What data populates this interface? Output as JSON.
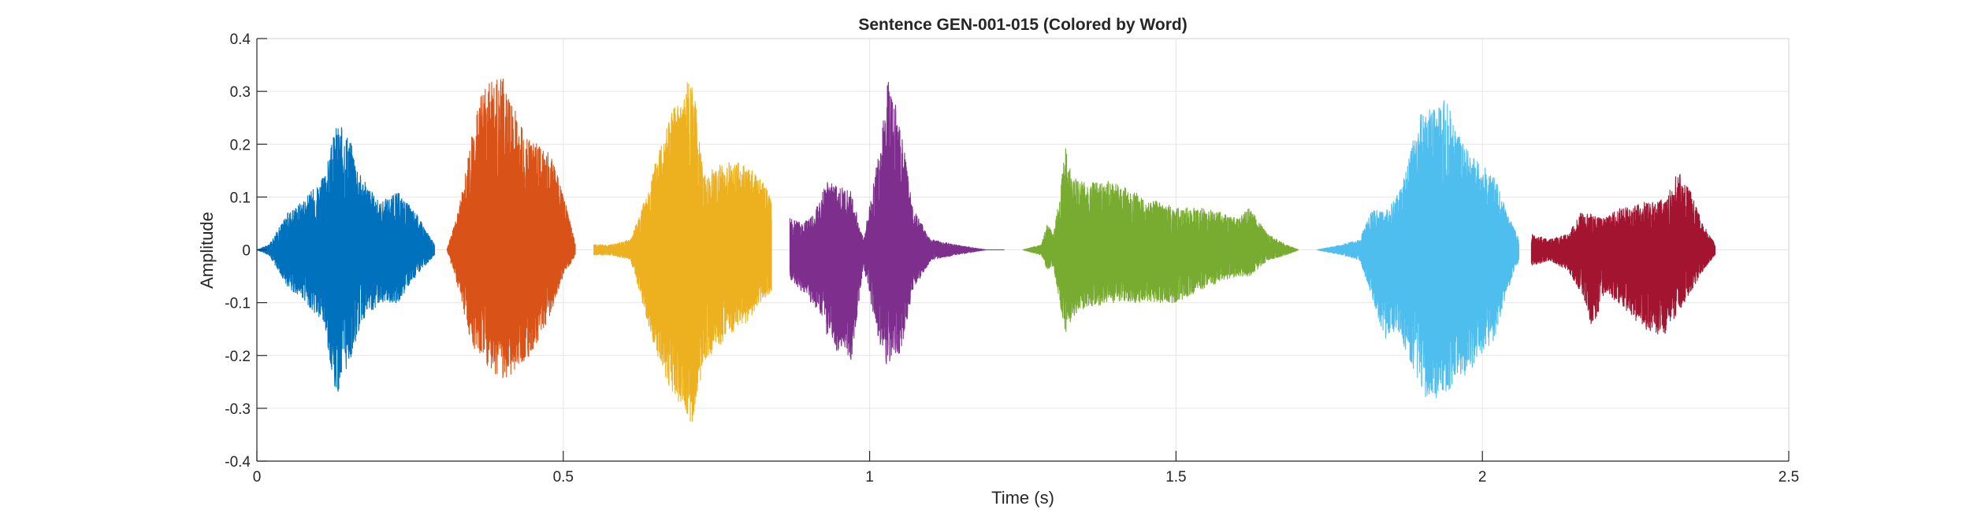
{
  "chart_data": {
    "type": "line",
    "title": "Sentence GEN-001-015 (Colored by Word)",
    "xlabel": "Time (s)",
    "ylabel": "Amplitude",
    "xlim": [
      0,
      2.5
    ],
    "ylim": [
      -0.4,
      0.4
    ],
    "xticks": [
      0,
      0.5,
      1,
      1.5,
      2,
      2.5
    ],
    "xtick_labels": [
      "0",
      "0.5",
      "1",
      "1.5",
      "2",
      "2.5"
    ],
    "yticks": [
      -0.4,
      -0.3,
      -0.2,
      -0.1,
      0,
      0.1,
      0.2,
      0.3,
      0.4
    ],
    "ytick_labels": [
      "-0.4",
      "-0.3",
      "-0.2",
      "-0.1",
      "0",
      "0.1",
      "0.2",
      "0.3",
      "0.4"
    ],
    "grid": true,
    "series": [
      {
        "color": "#0072BD",
        "x": [
          0.0,
          0.02,
          0.05,
          0.08,
          0.11,
          0.13,
          0.15,
          0.17,
          0.2,
          0.23,
          0.26,
          0.29
        ],
        "upper": [
          0.0,
          0.01,
          0.07,
          0.1,
          0.14,
          0.24,
          0.22,
          0.14,
          0.09,
          0.11,
          0.07,
          0.01
        ],
        "lower": [
          0.0,
          -0.01,
          -0.07,
          -0.1,
          -0.15,
          -0.28,
          -0.22,
          -0.14,
          -0.1,
          -0.1,
          -0.05,
          -0.01
        ]
      },
      {
        "color": "#D95319",
        "x": [
          0.31,
          0.33,
          0.35,
          0.37,
          0.39,
          0.4,
          0.42,
          0.44,
          0.46,
          0.48,
          0.5,
          0.52
        ],
        "upper": [
          0.0,
          0.08,
          0.21,
          0.32,
          0.32,
          0.33,
          0.27,
          0.21,
          0.2,
          0.18,
          0.11,
          0.01
        ],
        "lower": [
          0.0,
          -0.08,
          -0.18,
          -0.21,
          -0.24,
          -0.25,
          -0.23,
          -0.21,
          -0.17,
          -0.12,
          -0.05,
          -0.01
        ]
      },
      {
        "color": "#EDB120",
        "x": [
          0.55,
          0.58,
          0.61,
          0.64,
          0.67,
          0.69,
          0.71,
          0.73,
          0.75,
          0.77,
          0.8,
          0.82,
          0.84
        ],
        "upper": [
          0.01,
          0.01,
          0.02,
          0.12,
          0.26,
          0.28,
          0.34,
          0.14,
          0.16,
          0.17,
          0.16,
          0.14,
          0.1
        ],
        "lower": [
          -0.01,
          -0.01,
          -0.02,
          -0.15,
          -0.26,
          -0.29,
          -0.33,
          -0.21,
          -0.19,
          -0.16,
          -0.14,
          -0.1,
          -0.08
        ]
      },
      {
        "color": "#7E2F8E",
        "x": [
          0.87,
          0.89,
          0.91,
          0.93,
          0.95,
          0.97,
          0.99,
          1.01,
          1.03,
          1.05,
          1.07,
          1.1,
          1.14,
          1.19,
          1.22
        ],
        "upper": [
          0.06,
          0.05,
          0.07,
          0.13,
          0.12,
          0.11,
          0.02,
          0.15,
          0.33,
          0.24,
          0.08,
          0.02,
          0.01,
          0.0,
          0.0
        ],
        "lower": [
          -0.06,
          -0.08,
          -0.11,
          -0.16,
          -0.2,
          -0.21,
          -0.03,
          -0.15,
          -0.23,
          -0.2,
          -0.08,
          -0.02,
          -0.01,
          0.0,
          0.0
        ]
      },
      {
        "color": "#77AC30",
        "x": [
          1.25,
          1.28,
          1.29,
          1.3,
          1.31,
          1.32,
          1.33,
          1.35,
          1.4,
          1.45,
          1.5,
          1.55,
          1.6,
          1.62,
          1.65,
          1.68,
          1.7
        ],
        "upper": [
          0.0,
          0.01,
          0.05,
          0.03,
          0.1,
          0.2,
          0.14,
          0.13,
          0.13,
          0.1,
          0.08,
          0.08,
          0.06,
          0.08,
          0.03,
          0.01,
          0.0
        ],
        "lower": [
          0.0,
          -0.01,
          -0.04,
          -0.03,
          -0.1,
          -0.17,
          -0.13,
          -0.11,
          -0.1,
          -0.1,
          -0.1,
          -0.07,
          -0.05,
          -0.05,
          -0.02,
          -0.01,
          0.0
        ]
      },
      {
        "color": "#4DBEEE",
        "x": [
          1.73,
          1.77,
          1.8,
          1.82,
          1.84,
          1.86,
          1.88,
          1.9,
          1.92,
          1.94,
          1.96,
          1.98,
          2.0,
          2.02,
          2.04,
          2.06
        ],
        "upper": [
          0.0,
          0.01,
          0.02,
          0.08,
          0.07,
          0.1,
          0.18,
          0.26,
          0.27,
          0.29,
          0.22,
          0.18,
          0.16,
          0.14,
          0.07,
          0.02
        ],
        "lower": [
          0.0,
          -0.01,
          -0.02,
          -0.09,
          -0.17,
          -0.15,
          -0.21,
          -0.28,
          -0.29,
          -0.27,
          -0.25,
          -0.23,
          -0.2,
          -0.17,
          -0.08,
          -0.02
        ]
      },
      {
        "color": "#A2142F",
        "x": [
          2.08,
          2.11,
          2.14,
          2.16,
          2.18,
          2.2,
          2.22,
          2.24,
          2.26,
          2.28,
          2.3,
          2.32,
          2.34,
          2.36,
          2.38
        ],
        "upper": [
          0.03,
          0.02,
          0.03,
          0.07,
          0.07,
          0.06,
          0.08,
          0.08,
          0.09,
          0.09,
          0.1,
          0.15,
          0.11,
          0.05,
          0.01
        ],
        "lower": [
          -0.03,
          -0.02,
          -0.04,
          -0.08,
          -0.15,
          -0.08,
          -0.1,
          -0.12,
          -0.15,
          -0.16,
          -0.16,
          -0.12,
          -0.08,
          -0.04,
          -0.01
        ]
      }
    ]
  }
}
